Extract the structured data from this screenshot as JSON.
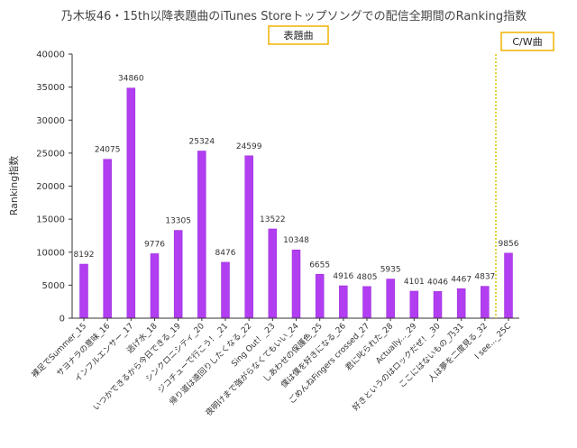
{
  "colors": {
    "bar": "#b13ef0",
    "bar_edge": "#9a2bd8",
    "legend_border": "#f0b400",
    "divider": "#d4c400",
    "axis": "#333333",
    "text": "#333333"
  },
  "chart_data": {
    "type": "bar",
    "title": "乃木坂46・15th以降表題曲のiTunes Storeトップソングでの配信全期間のRanking指数",
    "ylabel": "Ranking指数",
    "xlabel": "",
    "ylim": [
      0,
      40000
    ],
    "yticks": [
      "0",
      "5000",
      "10000",
      "15000",
      "20000",
      "25000",
      "30000",
      "35000",
      "40000"
    ],
    "grid": false,
    "legend": [
      "表題曲",
      "C/W曲"
    ],
    "legend_placement": "top",
    "categories": [
      "裸足でSummer_15",
      "サヨナラの意味_16",
      "インフルエンサー_17",
      "逃げ水_18",
      "いつかできるから今日できる_19",
      "シンクロニシティ_20",
      "ジコチューで行こう！_21",
      "帰り道は遠回りしたくなる_22",
      "Sing Out！_23",
      "夜明けまで強がらなくてもいい_24",
      "しあわせの保護色_25",
      "僕は僕を好きになる_26",
      "ごめんねFingers crossed_27",
      "君に叱られた_28",
      "Actually..._29",
      "好きというのはロックだぜ！_30",
      "ここにはないもの_乃31",
      "人は夢を二度見る_32",
      "I see..._25C"
    ],
    "values": [
      8192,
      24075,
      34860,
      9776,
      13305,
      25324,
      8476,
      24599,
      13522,
      10348,
      6655,
      4916,
      4805,
      5935,
      4101,
      4046,
      4467,
      4837,
      9856
    ],
    "data_labels": [
      "8192",
      "24075",
      "34860",
      "9776",
      "13305",
      "25324",
      "8476",
      "24599",
      "13522",
      "10348",
      "6655",
      "4916",
      "4805",
      "5935",
      "4101",
      "4046",
      "4467",
      "4837",
      "9856"
    ]
  }
}
